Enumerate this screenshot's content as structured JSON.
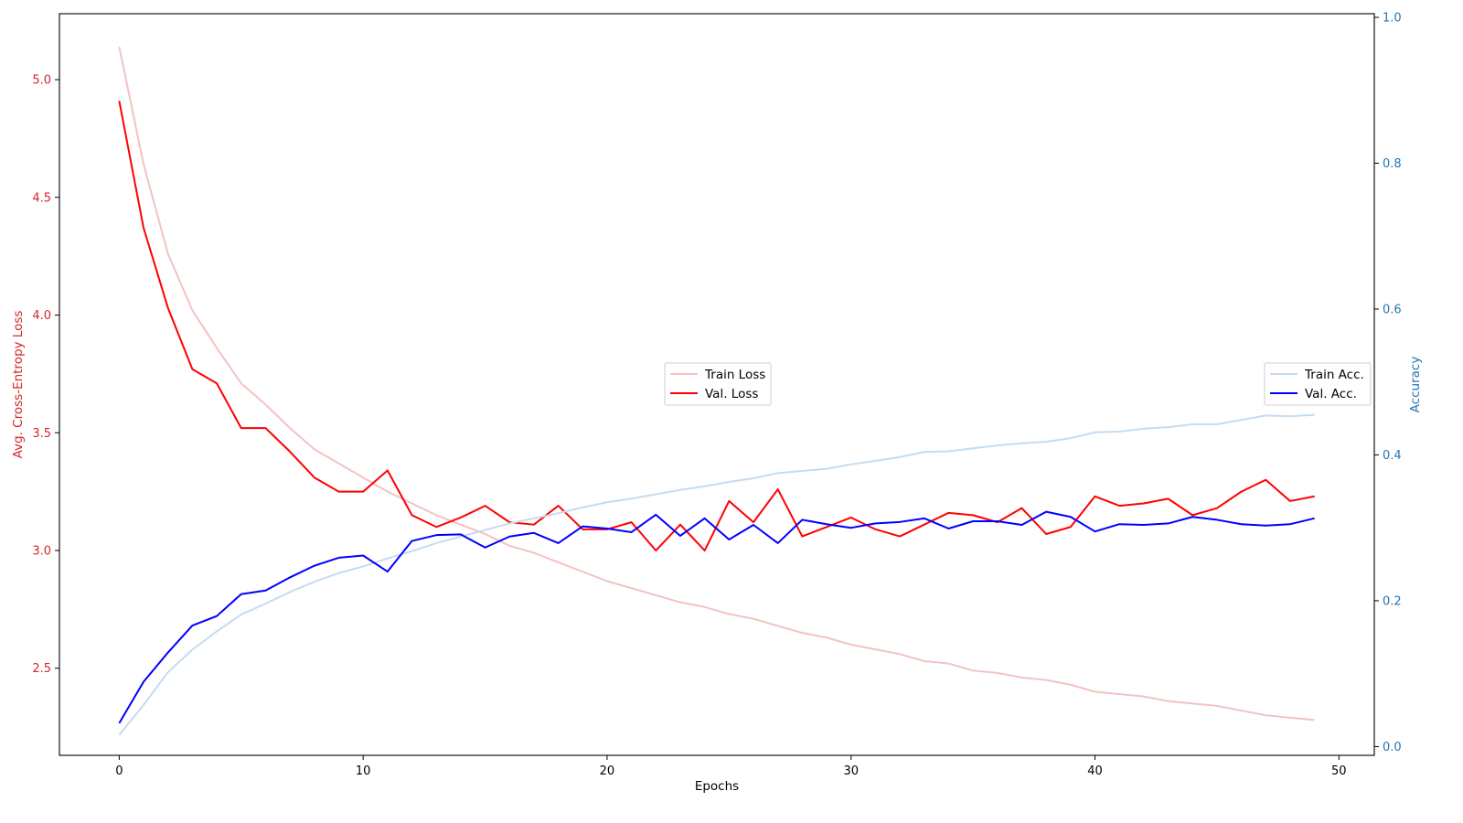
{
  "chart_data": {
    "type": "line",
    "title": "",
    "xlabel": "Epochs",
    "ylabel_left": "Avg. Cross-Entropy Loss",
    "ylabel_right": "Accuracy",
    "xlim": [
      -2.45,
      51.45
    ],
    "ylim_left": [
      2.13,
      5.28
    ],
    "ylim_right": [
      -0.012,
      1.005
    ],
    "x_ticks": [
      0,
      10,
      20,
      30,
      40,
      50
    ],
    "x_tick_labels": [
      "0",
      "10",
      "20",
      "30",
      "40",
      "50"
    ],
    "y_left_ticks": [
      2.5,
      3.0,
      3.5,
      4.0,
      4.5,
      5.0
    ],
    "y_left_tick_labels": [
      "2.5",
      "3.0",
      "3.5",
      "4.0",
      "4.5",
      "5.0"
    ],
    "y_right_ticks": [
      0.0,
      0.2,
      0.4,
      0.6,
      0.8,
      1.0
    ],
    "y_right_tick_labels": [
      "0.0",
      "0.2",
      "0.4",
      "0.6",
      "0.8",
      "1.0"
    ],
    "grid": false,
    "colors": {
      "left_axis": "#d62728",
      "right_axis": "#1f77b4",
      "train_loss": "#f4c2c2",
      "val_loss": "#ff0000",
      "train_acc": "#c6dbef",
      "val_acc": "#0000ff"
    },
    "legends": [
      {
        "placement": "center",
        "entries": [
          "Train Loss",
          "Val. Loss"
        ]
      },
      {
        "placement": "center-right",
        "entries": [
          "Train Acc.",
          "Val. Acc."
        ]
      }
    ],
    "x": [
      0,
      1,
      2,
      3,
      4,
      5,
      6,
      7,
      8,
      9,
      10,
      11,
      12,
      13,
      14,
      15,
      16,
      17,
      18,
      19,
      20,
      21,
      22,
      23,
      24,
      25,
      26,
      27,
      28,
      29,
      30,
      31,
      32,
      33,
      34,
      35,
      36,
      37,
      38,
      39,
      40,
      41,
      42,
      43,
      44,
      45,
      46,
      47,
      48,
      49
    ],
    "series": [
      {
        "name": "Train Loss",
        "axis": "left",
        "color": "#f4c2c2",
        "values": [
          5.14,
          4.64,
          4.26,
          4.02,
          3.86,
          3.71,
          3.62,
          3.52,
          3.43,
          3.37,
          3.31,
          3.25,
          3.2,
          3.15,
          3.11,
          3.07,
          3.02,
          2.99,
          2.95,
          2.91,
          2.87,
          2.84,
          2.81,
          2.78,
          2.76,
          2.73,
          2.71,
          2.68,
          2.65,
          2.63,
          2.6,
          2.58,
          2.56,
          2.53,
          2.52,
          2.49,
          2.48,
          2.46,
          2.45,
          2.43,
          2.4,
          2.39,
          2.38,
          2.36,
          2.35,
          2.34,
          2.32,
          2.3,
          2.29,
          2.28
        ]
      },
      {
        "name": "Val. Loss",
        "axis": "left",
        "color": "#ff0000",
        "values": [
          4.91,
          4.37,
          4.03,
          3.77,
          3.71,
          3.52,
          3.52,
          3.42,
          3.31,
          3.25,
          3.25,
          3.34,
          3.15,
          3.1,
          3.14,
          3.19,
          3.12,
          3.11,
          3.19,
          3.09,
          3.09,
          3.12,
          3.0,
          3.11,
          3.0,
          3.21,
          3.12,
          3.26,
          3.06,
          3.1,
          3.14,
          3.09,
          3.06,
          3.11,
          3.16,
          3.15,
          3.12,
          3.18,
          3.07,
          3.1,
          3.23,
          3.19,
          3.2,
          3.22,
          3.15,
          3.18,
          3.25,
          3.3,
          3.21,
          3.23
        ]
      },
      {
        "name": "Train Acc.",
        "axis": "right",
        "color": "#c6dbef",
        "values": [
          0.016,
          0.057,
          0.102,
          0.133,
          0.158,
          0.181,
          0.196,
          0.212,
          0.226,
          0.238,
          0.247,
          0.258,
          0.268,
          0.279,
          0.288,
          0.297,
          0.306,
          0.313,
          0.32,
          0.328,
          0.335,
          0.34,
          0.346,
          0.352,
          0.357,
          0.363,
          0.368,
          0.375,
          0.378,
          0.381,
          0.387,
          0.392,
          0.397,
          0.404,
          0.405,
          0.409,
          0.413,
          0.416,
          0.418,
          0.423,
          0.431,
          0.432,
          0.436,
          0.438,
          0.442,
          0.442,
          0.448,
          0.454,
          0.453,
          0.455
        ]
      },
      {
        "name": "Val. Acc.",
        "axis": "right",
        "color": "#0000ff",
        "values": [
          0.032,
          0.089,
          0.129,
          0.166,
          0.179,
          0.209,
          0.214,
          0.232,
          0.248,
          0.259,
          0.262,
          0.24,
          0.282,
          0.29,
          0.291,
          0.273,
          0.288,
          0.293,
          0.279,
          0.302,
          0.299,
          0.294,
          0.318,
          0.289,
          0.313,
          0.284,
          0.304,
          0.279,
          0.311,
          0.305,
          0.3,
          0.306,
          0.308,
          0.313,
          0.299,
          0.309,
          0.309,
          0.304,
          0.322,
          0.315,
          0.295,
          0.305,
          0.304,
          0.306,
          0.315,
          0.311,
          0.305,
          0.303,
          0.305,
          0.313
        ]
      }
    ]
  }
}
